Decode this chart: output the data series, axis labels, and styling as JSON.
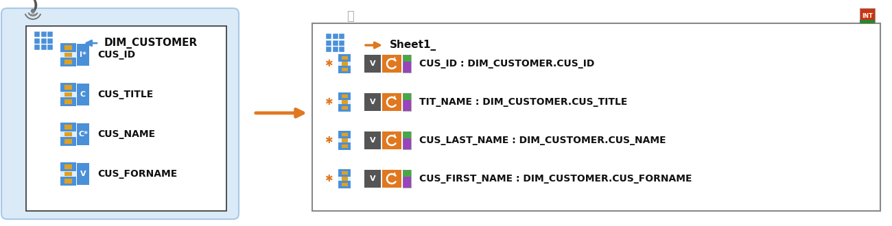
{
  "bg_color": "#ffffff",
  "fig_w": 13.0,
  "fig_h": 3.3,
  "dpi": 100,
  "left_panel": {
    "title": "DIM_CUSTOMER",
    "fields": [
      "CUS_ID",
      "CUS_TITLE",
      "CUS_NAME",
      "CUS_FORNAME"
    ],
    "field_labels": [
      "I*",
      "C",
      "C*",
      "V"
    ],
    "bg_color": "#daeaf7",
    "border_color": "#aac8e8",
    "inner_bg": "#ffffff",
    "inner_border": "#555555"
  },
  "right_panel": {
    "title": "Sheet1_",
    "mappings": [
      "CUS_ID : DIM_CUSTOMER.CUS_ID",
      "TIT_NAME : DIM_CUSTOMER.CUS_TITLE",
      "CUS_LAST_NAME : DIM_CUSTOMER.CUS_NAME",
      "CUS_FIRST_NAME : DIM_CUSTOMER.CUS_FORNAME"
    ],
    "bg_color": "#ffffff",
    "border_color": "#777777"
  },
  "blue": "#4a90d9",
  "light_blue": "#b8d4ef",
  "orange": "#e07820",
  "dark_gray": "#555555",
  "gold": "#e0a020",
  "purple": "#9944bb",
  "green": "#44aa44",
  "white": "#ffffff",
  "text_dark": "#111111",
  "arrow_main_color": "#e07820"
}
